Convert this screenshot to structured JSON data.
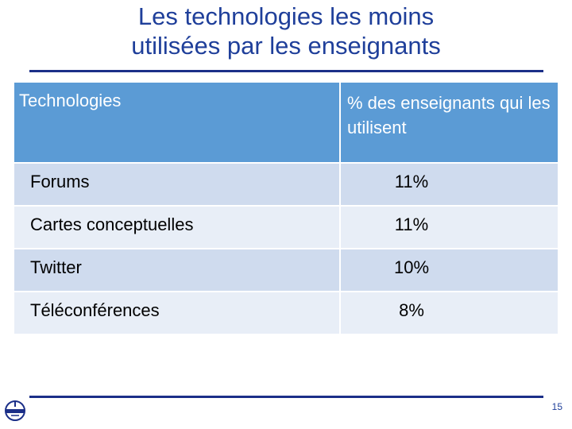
{
  "slide": {
    "title_line1": "Les technologies les moins",
    "title_line2": "utilisées par les enseignants",
    "page_number": "15"
  },
  "table": {
    "headers": [
      "Technologies",
      "% des enseignants qui les utilisent"
    ],
    "rows": [
      {
        "technology": "Forums",
        "percent": "11%"
      },
      {
        "technology": "Cartes conceptuelles",
        "percent": "11%"
      },
      {
        "technology": "Twitter",
        "percent": "10%"
      },
      {
        "technology": "Téléconférences",
        "percent": "8%"
      }
    ]
  },
  "colors": {
    "title": "#1f3f9a",
    "rule": "#1b2f88",
    "header_bg": "#5b9bd5",
    "row_odd": "#cfdbee",
    "row_even": "#e8eef7"
  },
  "icons": {
    "logo": "organization-logo-icon"
  }
}
